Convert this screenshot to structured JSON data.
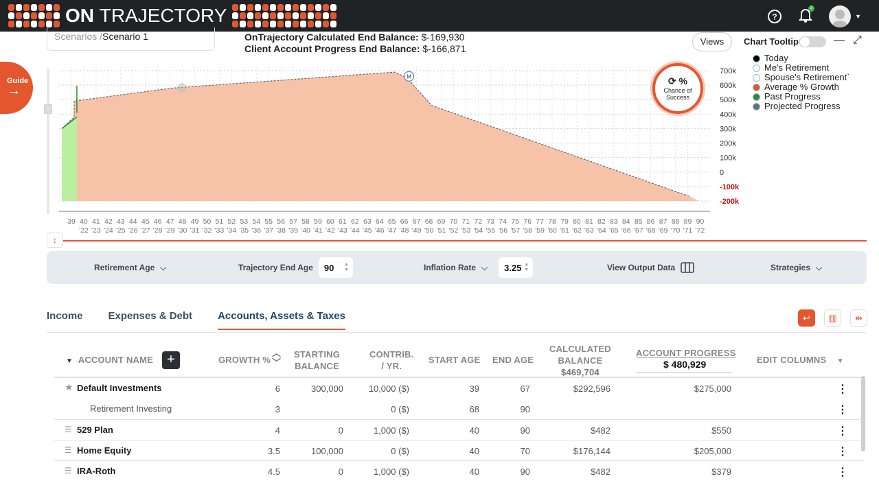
{
  "app": {
    "brand_bold": "ON",
    "brand_thin": "TRAJECTORY",
    "help_icon": "help-circle-icon",
    "bell_badge": "3"
  },
  "scenario": {
    "prefix": "Scenarios /",
    "name": "Scenario 1"
  },
  "balances": {
    "calc_label": "OnTrajectory Calculated End Balance:",
    "calc_value": "$-169,930",
    "progress_label": "Client Account Progress End Balance:",
    "progress_value": "$-166,871"
  },
  "guide": {
    "label": "Guide"
  },
  "views": {
    "label": "Views"
  },
  "tooltip": {
    "label": "Chart Tooltip"
  },
  "legend": [
    {
      "label": "Today",
      "color": "#000000"
    },
    {
      "label": "Me's Retirement",
      "color": "#ffffff"
    },
    {
      "label": "Spouse's Retirement`",
      "color": "#ffffff"
    },
    {
      "label": "Average % Growth",
      "color": "#e4572e"
    },
    {
      "label": "Past Progress",
      "color": "#2e8b2e"
    },
    {
      "label": "Projected Progress",
      "color": "#5f7280"
    }
  ],
  "chance": {
    "pct": "%",
    "line1": "Chance of",
    "line2": "Success"
  },
  "chart_data": {
    "type": "area",
    "title": "",
    "x_ages": [
      "39",
      "40",
      "41",
      "42",
      "43",
      "44",
      "45",
      "46",
      "47",
      "48",
      "49",
      "50",
      "51",
      "52",
      "53",
      "54",
      "55",
      "56",
      "57",
      "58",
      "59",
      "60",
      "61",
      "62",
      "63",
      "64",
      "65",
      "66",
      "67",
      "68",
      "69",
      "70",
      "71",
      "72",
      "73",
      "74",
      "75",
      "76",
      "77",
      "78",
      "79",
      "80",
      "81",
      "82",
      "83",
      "84",
      "85",
      "86",
      "87",
      "88",
      "89",
      "90"
    ],
    "x_years": [
      "",
      "'22",
      "'23",
      "'24",
      "'25",
      "'26",
      "'27",
      "'28",
      "'29",
      "'30",
      "'31",
      "'32",
      "'33",
      "'34",
      "'35",
      "'36",
      "'37",
      "'38",
      "'39",
      "'40",
      "'41",
      "'42",
      "'43",
      "'44",
      "'45",
      "'46",
      "'47",
      "'48",
      "'49",
      "'50",
      "'51",
      "'52",
      "'53",
      "'54",
      "'55",
      "'56",
      "'57",
      "'58",
      "'59",
      "'60",
      "'61",
      "'62",
      "'63",
      "'64",
      "'65",
      "'66",
      "'67",
      "'68",
      "'69",
      "'70",
      "'71",
      "'72"
    ],
    "y_ticks": [
      "700k",
      "600k",
      "500k",
      "400k",
      "300k",
      "200k",
      "100k",
      "0",
      "-100k",
      "-200k"
    ],
    "ylim": [
      -200000,
      700000
    ],
    "series": [
      {
        "name": "Average % Growth",
        "points": [
          [
            39,
            -200000
          ],
          [
            39,
            300000
          ],
          [
            40,
            380000
          ],
          [
            40,
            490000
          ],
          [
            48,
            580000
          ],
          [
            66,
            690000
          ],
          [
            67,
            650000
          ],
          [
            69,
            460000
          ],
          [
            90,
            -170000
          ]
        ]
      },
      {
        "name": "Past Progress",
        "points": [
          [
            39,
            300000
          ],
          [
            40,
            380000
          ]
        ]
      }
    ],
    "markers": [
      {
        "age": 67,
        "label": "M"
      }
    ]
  },
  "controls": {
    "retirement_age": "Retirement Age",
    "end_age_label": "Trajectory End Age",
    "end_age_value": "90",
    "inflation_label": "Inflation Rate",
    "inflation_value": "3.25",
    "output_label": "View Output Data",
    "strategies_label": "Strategies"
  },
  "tabs": [
    "Income",
    "Expenses & Debt",
    "Accounts, Assets & Taxes"
  ],
  "table": {
    "headers": {
      "account_name": "ACCOUNT NAME",
      "growth": "GROWTH %",
      "starting_1": "STARTING",
      "starting_2": "BALANCE",
      "contrib_1": "CONTRIB.",
      "contrib_2": "/ YR.",
      "start_age": "START AGE",
      "end_age": "END AGE",
      "calc_1": "CALCULATED",
      "calc_2": "BALANCE",
      "calc_total": "$469,704",
      "progress": "ACCOUNT PROGRESS",
      "progress_total": "$ 480,929",
      "edit_columns": "EDIT COLUMNS"
    },
    "rows": [
      {
        "name": "Default Investments",
        "growth": "6",
        "starting": "300,000",
        "contrib": "10,000 ($)",
        "start": "39",
        "end": "67",
        "calc": "$292,596",
        "progress": "$275,000",
        "type": "star"
      },
      {
        "name": "Retirement Investing",
        "growth": "3",
        "starting": "",
        "contrib": "0 ($)",
        "start": "68",
        "end": "90",
        "calc": "",
        "progress": "",
        "type": "sub"
      },
      {
        "name": "529 Plan",
        "growth": "4",
        "starting": "0",
        "contrib": "1,000 ($)",
        "start": "40",
        "end": "90",
        "calc": "$482",
        "progress": "$550",
        "type": "grip"
      },
      {
        "name": "Home Equity",
        "growth": "3.5",
        "starting": "100,000",
        "contrib": "0 ($)",
        "start": "40",
        "end": "70",
        "calc": "$176,144",
        "progress": "$205,000",
        "type": "grip"
      },
      {
        "name": "IRA-Roth",
        "growth": "4.5",
        "starting": "0",
        "contrib": "1,000 ($)",
        "start": "40",
        "end": "90",
        "calc": "$482",
        "progress": "$379",
        "type": "grip"
      }
    ]
  }
}
